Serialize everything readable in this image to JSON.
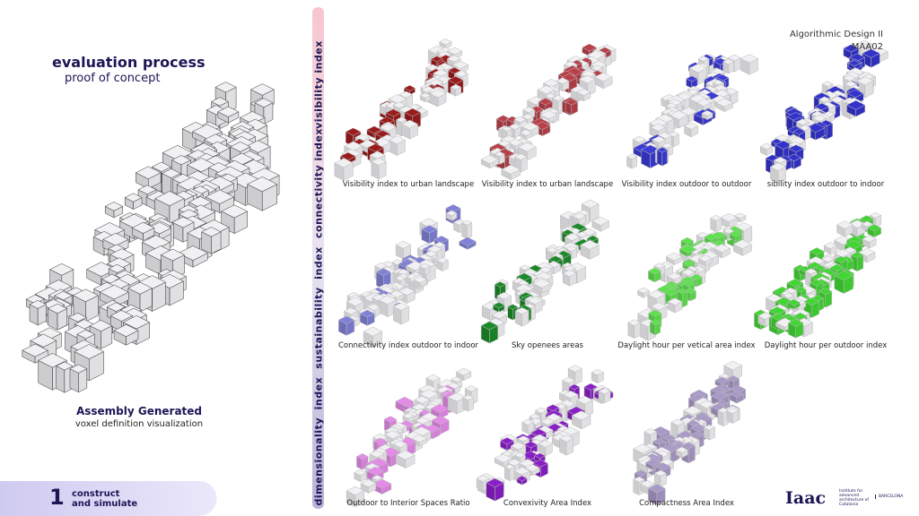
{
  "header": {
    "course": "Algorithmic Design II",
    "code": "MAA02"
  },
  "left": {
    "title": "evaluation process",
    "subtitle": "proof of concept",
    "assembly_title": "Assembly Generated",
    "assembly_caption": "voxel definition visualization"
  },
  "footer": {
    "number": "1",
    "line1": "construct",
    "line2": "and simulate"
  },
  "sidebar": {
    "labels": [
      "visibility index",
      "connectivity index",
      "sustainability  index",
      "dimensionality  index"
    ]
  },
  "captions": [
    "Visibility index to urban landscape",
    "Visibility index to urban landscape",
    "Visibility index outdoor to outdoor",
    "sibility index outdoor to indoor",
    "Connectivity index outdoor to indoor",
    "Sky openees areas",
    "Daylight hour per vetical area  index",
    "Daylight hour per outdoor index",
    "Outdoor to Interior Spaces Ratio",
    "Convexivity Area Index",
    "Compactness  Area Index"
  ],
  "logo": {
    "mark": "Iaac",
    "text": "Institute for advanced architecture of Catalonia",
    "city": "BARCELONA"
  }
}
